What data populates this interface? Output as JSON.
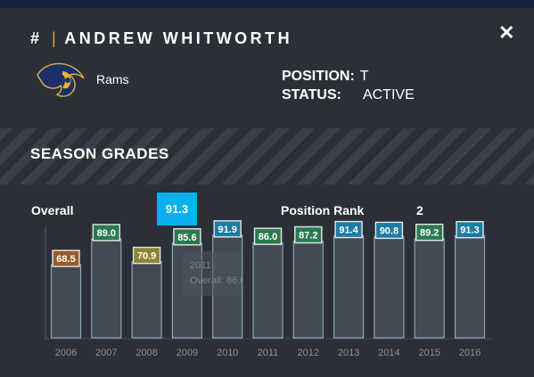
{
  "player": {
    "title_prefix": "#",
    "title_separator": "|",
    "name": "ANDREW WHITWORTH",
    "team": "Rams",
    "position_label": "POSITION:",
    "position_value": "T",
    "status_label": "STATUS:",
    "status_value": "ACTIVE"
  },
  "icons": {
    "close": "close-icon",
    "logo": "rams-logo"
  },
  "section": {
    "title": "SEASON GRADES"
  },
  "summary": {
    "overall_label": "Overall",
    "overall_value": "91.3",
    "rank_label": "Position Rank",
    "rank_value": "2"
  },
  "tooltip": {
    "year": "2011",
    "text": "Overall: 86.0"
  },
  "colors": {
    "accent_blue": "#0ab0ee",
    "grade_blue": "#1b7ca6",
    "grade_green": "#2a7a4f",
    "grade_olive": "#8c8431",
    "grade_orange": "#9a5b2c",
    "separator": "#e6a23c"
  },
  "chart_data": {
    "type": "bar",
    "categories": [
      "2006",
      "2007",
      "2008",
      "2009",
      "2010",
      "2011",
      "2012",
      "2013",
      "2014",
      "2015",
      "2016"
    ],
    "values": [
      68.5,
      89.0,
      70.9,
      85.6,
      91.9,
      86.0,
      87.2,
      91.4,
      90.8,
      89.2,
      91.3
    ],
    "label_colors": [
      "#9a5b2c",
      "#2a7a4f",
      "#8c8431",
      "#2a7a4f",
      "#1b7ca6",
      "#2a7a4f",
      "#2a7a4f",
      "#1b7ca6",
      "#1b7ca6",
      "#2a7a4f",
      "#1b7ca6"
    ],
    "title": "",
    "xlabel": "",
    "ylabel": "",
    "ylim": [
      0,
      100
    ],
    "grid": false
  }
}
